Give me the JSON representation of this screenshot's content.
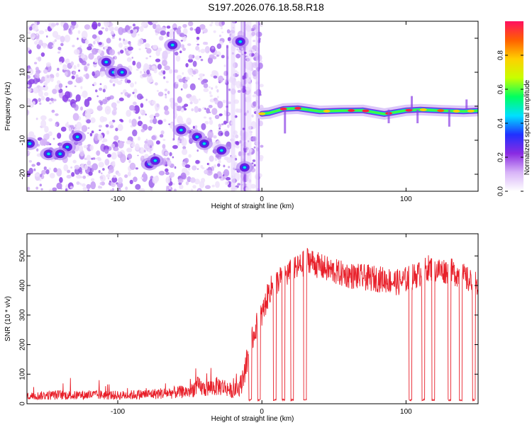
{
  "title": "S197.2026.076.18.58.R18",
  "chart_data": [
    {
      "type": "heatmap",
      "name": "spectrogram",
      "xlabel": "Height of straight line (km)",
      "ylabel": "Frequency (Hz)",
      "xlim": [
        -163,
        150
      ],
      "ylim": [
        -25,
        25
      ],
      "xticks": [
        -100,
        0,
        100
      ],
      "yticks": [
        -20,
        -10,
        0,
        10,
        20
      ],
      "colorbar": {
        "label": "Normalized spectral amplitude",
        "range": [
          0,
          1
        ],
        "ticks": [
          "0.0",
          "0.2",
          "0.4",
          "0.6",
          "0.8"
        ],
        "colors": [
          "#ffffff",
          "#d8b4f8",
          "#8a2be2",
          "#2030ff",
          "#00e0ff",
          "#00ff60",
          "#c8ff00",
          "#ffd000",
          "#ff6000",
          "#ff1060"
        ]
      },
      "carrier_track": {
        "description_points": [
          [
            0,
            -2.2
          ],
          [
            5,
            -2
          ],
          [
            15,
            -0.8
          ],
          [
            25,
            -0.6
          ],
          [
            40,
            -1.5
          ],
          [
            55,
            -1.3
          ],
          [
            70,
            -1.2
          ],
          [
            85,
            -2.3
          ],
          [
            100,
            -1.2
          ],
          [
            110,
            -1.0
          ],
          [
            125,
            -1.3
          ],
          [
            140,
            -1.5
          ],
          [
            150,
            -1.3
          ]
        ]
      },
      "blobs": [
        [
          -161,
          -11,
          0.35
        ],
        [
          -148,
          -14,
          0.3
        ],
        [
          -135,
          -12,
          0.35
        ],
        [
          -128,
          -9,
          0.35
        ],
        [
          -140,
          -14,
          0.28
        ],
        [
          -103,
          10,
          0.35
        ],
        [
          -97,
          10,
          0.3
        ],
        [
          -108,
          13,
          0.25
        ],
        [
          -78,
          -17,
          0.4
        ],
        [
          -74,
          -16,
          0.3
        ],
        [
          -62,
          18,
          0.4
        ],
        [
          -56,
          -7,
          0.35
        ],
        [
          -45,
          -9,
          0.35
        ],
        [
          -40,
          -11,
          0.3
        ],
        [
          -28,
          -13,
          0.35
        ],
        [
          -15,
          19,
          0.35
        ],
        [
          -12,
          -18,
          0.3
        ]
      ]
    },
    {
      "type": "line",
      "name": "snr",
      "xlabel": "Height of straight line (km)",
      "ylabel": "SNR (10 * v/v)",
      "xlim": [
        -163,
        150
      ],
      "ylim": [
        0,
        575
      ],
      "xticks": [
        -100,
        0,
        100
      ],
      "yticks": [
        0,
        100,
        200,
        300,
        400,
        500
      ],
      "color": "#e8202a",
      "series": [
        {
          "name": "SNR",
          "x": [
            -163,
            -150,
            -140,
            -130,
            -120,
            -110,
            -100,
            -90,
            -80,
            -70,
            -60,
            -50,
            -45,
            -40,
            -30,
            -25,
            -20,
            -15,
            -10,
            -5,
            -2,
            0,
            2,
            5,
            8,
            12,
            18,
            22,
            28,
            32,
            38,
            45,
            55,
            65,
            75,
            85,
            95,
            100,
            105,
            110,
            115,
            120,
            125,
            130,
            135,
            140,
            145,
            150
          ],
          "y": [
            25,
            28,
            30,
            28,
            30,
            30,
            28,
            30,
            32,
            35,
            38,
            42,
            60,
            50,
            60,
            55,
            40,
            60,
            150,
            250,
            280,
            300,
            330,
            380,
            400,
            420,
            440,
            450,
            470,
            490,
            470,
            455,
            440,
            430,
            425,
            420,
            410,
            420,
            430,
            440,
            460,
            455,
            450,
            450,
            440,
            430,
            410,
            400
          ]
        }
      ],
      "dropouts": [
        [
          -9,
          -7
        ],
        [
          -3,
          -1
        ],
        [
          8,
          10
        ],
        [
          14,
          16
        ],
        [
          20,
          22
        ],
        [
          29,
          31
        ],
        [
          102,
          104
        ],
        [
          111,
          113
        ],
        [
          118,
          120
        ],
        [
          129,
          131
        ],
        [
          137,
          139
        ],
        [
          146,
          148
        ]
      ],
      "dropout_level": 10
    }
  ]
}
